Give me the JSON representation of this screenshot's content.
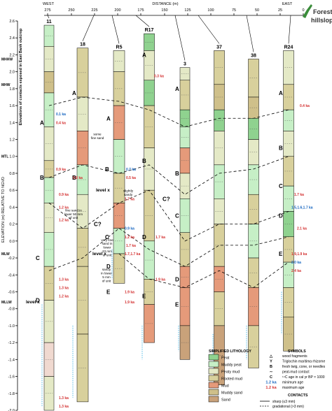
{
  "direction": {
    "west": "WEST",
    "east": "EAST",
    "distance_label": "DISTANCE (m)"
  },
  "distance_ticks": [
    "275",
    "250",
    "225",
    "200",
    "175",
    "150",
    "125",
    "100",
    "75",
    "50",
    "25",
    "0"
  ],
  "forested_label": [
    "Forested",
    "hillslope"
  ],
  "y_axis": {
    "label_main": "ELEVATION (m) RELATIVE TO NGVD",
    "label_side": "Elevations of contacts exposed in East Bank outcrop",
    "ticks": [
      "2.6",
      "2.4",
      "2.2",
      "2.0",
      "1.8",
      "1.6",
      "1.4",
      "1.2",
      "1.0",
      "0.8",
      "0.6",
      "0.4",
      "0.2",
      "0.0",
      "-0.2",
      "-0.4",
      "-0.6",
      "-0.8",
      "-1.0",
      "-1.2",
      "-1.4",
      "-1.6",
      "-1.8",
      "-2.0"
    ],
    "tide_levels": [
      "MHHW",
      "MHW",
      "MTL",
      "MLW",
      "MLLW"
    ]
  },
  "cores": [
    {
      "id": "11",
      "top": 2.55,
      "bottom": -2.0
    },
    {
      "id": "18",
      "top": 2.28,
      "bottom": -1.9
    },
    {
      "id": "R5",
      "top": 2.25,
      "bottom": -0.5
    },
    {
      "id": "R17",
      "top": 2.45,
      "bottom": -1.2
    },
    {
      "id": "3",
      "top": 2.05,
      "bottom": -1.4
    },
    {
      "id": "37",
      "top": 2.25,
      "bottom": -1.7
    },
    {
      "id": "38",
      "top": 2.15,
      "bottom": -1.5
    },
    {
      "id": "R24",
      "top": 2.25,
      "bottom": -1.3
    }
  ],
  "contact_letters": [
    "A",
    "B",
    "C",
    "D",
    "A",
    "B",
    "C?",
    "A",
    "B",
    "C",
    "D",
    "E",
    "A",
    "B",
    "C?",
    "D",
    "E",
    "A",
    "B",
    "C",
    "D",
    "E",
    "A",
    "B",
    "C",
    "D",
    "E"
  ],
  "level_labels": [
    "level x",
    "level x",
    "level x"
  ],
  "ages": [
    "0.1 ka",
    "0.4 ka",
    "0.9 ka",
    "0.8 ka",
    "0.9 ka",
    "1.2 ka",
    "1.2 ka",
    "1.3 ka",
    "1.3 ka",
    "1.2 ka",
    "0.3 ka",
    "0.7 ka",
    "0.5 ka",
    "1.7 ka",
    "0.9 ka",
    "1.2 ka",
    "1.7 ka",
    "1.7,1.7 ka",
    "1.9 ka",
    "1.9 ka",
    "1.7 ka",
    "1.9 ka",
    "0.4 ka",
    "1.7 ka",
    "1.5,1.6,1.7 ka",
    "2.1 ka",
    "1.9,1.9 ka",
    "2.0 ka",
    "2.4 ka",
    "1.3 ka",
    "1.3 ka"
  ],
  "notes": [
    {
      "lines": [
        "some",
        "fine sand"
      ]
    },
    {
      "lines": [
        "slightly",
        "sandy"
      ]
    },
    {
      "lines": [
        "fine sand in",
        "lower 50 mm",
        "of unit"
      ]
    },
    {
      "lines": [
        "very fine",
        "sand in",
        "lower",
        "23 mm",
        "of unit"
      ]
    },
    {
      "lines": [
        "sandy",
        "in lower",
        "5 mm",
        "of unit"
      ]
    }
  ],
  "legend": {
    "title": "SIMPLIFIED LITHOLOGY",
    "items": [
      {
        "label": "Peat",
        "color": "#8fd28f"
      },
      {
        "label": "Muddy peat",
        "color": "#c6efc6"
      },
      {
        "label": "Peaty mud",
        "color": "#e4e9c6"
      },
      {
        "label": "Rooted mud",
        "color": "#d8d09c"
      },
      {
        "label": "Mud",
        "color": "#e59a7a"
      },
      {
        "label": "Muddy sand",
        "color": "#cfc08a"
      },
      {
        "label": "Sand",
        "color": "#c9a27a"
      }
    ]
  },
  "symbols": {
    "title": "SYMBOLS",
    "items": [
      {
        "glyph": "△",
        "label": "wood fragments"
      },
      {
        "glyph": "Y",
        "label": "Triglochin maritima rhizome"
      },
      {
        "glyph": "B",
        "label": "fresh twig, cone, or needles"
      },
      {
        "glyph": "∼",
        "label": "peat-mud contact"
      },
      {
        "glyph": "C",
        "label": "¹⁴C age in cal yr BP × 1000"
      },
      {
        "glyph": "1.2 ka",
        "label": "minimum age"
      },
      {
        "glyph": "1.2 ka",
        "label": "maximum age"
      }
    ]
  },
  "contacts": {
    "title": "CONTACTS",
    "items": [
      {
        "label": "sharp (≤3 mm)"
      },
      {
        "label": "gradational (>3 mm)"
      }
    ]
  },
  "colors": {
    "min_age": "#1565c0",
    "max_age": "#d32f2f",
    "blue_bracket": "#29a9e0"
  }
}
